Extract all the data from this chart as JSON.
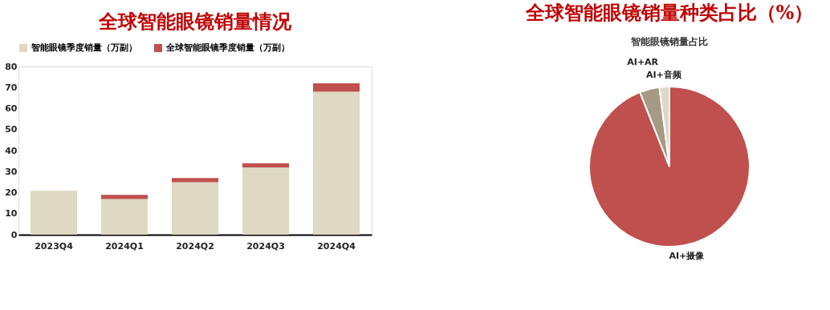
{
  "chart_data": [
    {
      "type": "bar",
      "title": "全球智能眼镜销量情况",
      "stacked": true,
      "legend": "top",
      "categories": [
        "2023Q4",
        "2024Q1",
        "2024Q2",
        "2024Q3",
        "2024Q4"
      ],
      "series": [
        {
          "name": "智能眼镜季度销量（万副）",
          "color": "#ddd9c3",
          "values": [
            21,
            17,
            25,
            32,
            68
          ]
        },
        {
          "name": "全球智能眼镜季度销量（万副）",
          "color": "#c0504d",
          "values": [
            0,
            2,
            2,
            2,
            4
          ]
        }
      ],
      "ylim": [
        0,
        80
      ],
      "yticks": [
        0,
        10,
        20,
        30,
        40,
        50,
        60,
        70,
        80
      ],
      "grid": false
    },
    {
      "type": "pie",
      "title": "全球智能眼镜销量种类占比（%）",
      "subtitle": "智能眼镜销量占比",
      "legend": false,
      "categories": [
        "AI+摄像",
        "AI+AR",
        "AI+音频"
      ],
      "values": [
        94,
        4,
        2
      ],
      "colors": [
        "#c0504d",
        "#a69a85",
        "#ddd9c3"
      ]
    }
  ]
}
